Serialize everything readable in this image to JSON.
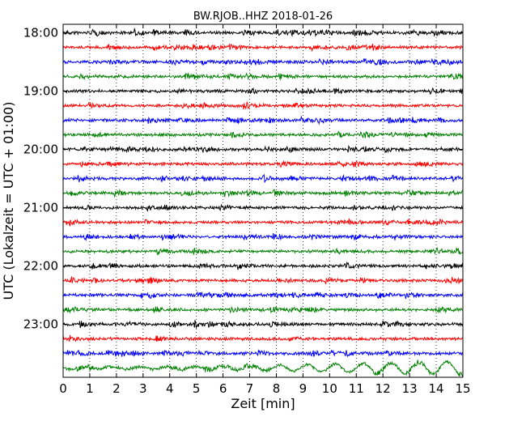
{
  "chart_data": {
    "type": "line",
    "title": "BW.RJOB..HHZ 2018-01-26",
    "xlabel": "Zeit  [min]",
    "ylabel": "UTC (Lokalzeit = UTC + 01:00)",
    "xlim": [
      0,
      15
    ],
    "x_ticks": [
      "0",
      "1",
      "2",
      "3",
      "4",
      "5",
      "6",
      "7",
      "8",
      "9",
      "10",
      "11",
      "12",
      "13",
      "14",
      "15"
    ],
    "y_ticks": [
      "18:00",
      "19:00",
      "20:00",
      "21:00",
      "22:00",
      "23:00"
    ],
    "trace_interval_min": 15,
    "start_time": "18:00",
    "grid": "vertical dotted",
    "series_colors": [
      "#000000",
      "#ff0000",
      "#0000ff",
      "#008000"
    ],
    "rows": [
      {
        "start": "18:00",
        "color": "#000000"
      },
      {
        "start": "18:15",
        "color": "#ff0000"
      },
      {
        "start": "18:30",
        "color": "#0000ff"
      },
      {
        "start": "18:45",
        "color": "#008000"
      },
      {
        "start": "19:00",
        "color": "#000000"
      },
      {
        "start": "19:15",
        "color": "#ff0000"
      },
      {
        "start": "19:30",
        "color": "#0000ff"
      },
      {
        "start": "19:45",
        "color": "#008000"
      },
      {
        "start": "20:00",
        "color": "#000000"
      },
      {
        "start": "20:15",
        "color": "#ff0000"
      },
      {
        "start": "20:30",
        "color": "#0000ff"
      },
      {
        "start": "20:45",
        "color": "#008000"
      },
      {
        "start": "21:00",
        "color": "#000000"
      },
      {
        "start": "21:15",
        "color": "#ff0000"
      },
      {
        "start": "21:30",
        "color": "#0000ff"
      },
      {
        "start": "21:45",
        "color": "#008000"
      },
      {
        "start": "22:00",
        "color": "#000000"
      },
      {
        "start": "22:15",
        "color": "#ff0000"
      },
      {
        "start": "22:30",
        "color": "#0000ff"
      },
      {
        "start": "22:45",
        "color": "#008000"
      },
      {
        "start": "23:00",
        "color": "#000000"
      },
      {
        "start": "23:15",
        "color": "#ff0000"
      },
      {
        "start": "23:30",
        "color": "#0000ff"
      },
      {
        "start": "23:45",
        "color": "#008000"
      }
    ]
  }
}
